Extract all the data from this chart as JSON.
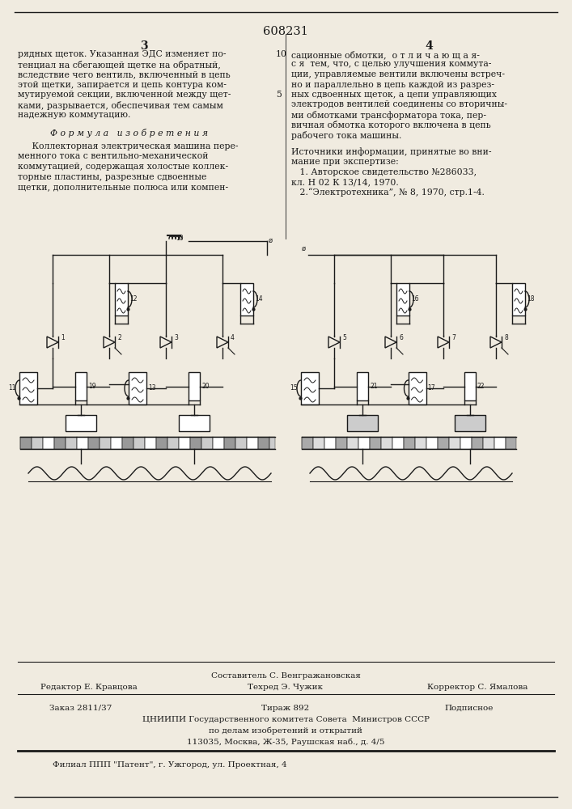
{
  "patent_number": "608231",
  "page_left": "3",
  "page_right": "4",
  "col_left_text": [
    "рядных щеток. Указанная ЭДС изменяет по-",
    "тенциал на сбегающей щетке на обратный,",
    "вследствие чего вентиль, включенный в цепь",
    "этой щетки, запирается и цепь контура ком-",
    "мутируемой секции, включенной между щет-",
    "ками, разрывается, обеспечивая тем самым",
    "надежную коммутацию."
  ],
  "formula_header": "Ф о р м у л а   и з о б р е т е н и я",
  "formula_text": [
    "     Коллекторная электрическая машина пере-",
    "менного тока с вентильно-механической",
    "коммутацией, содержащая холостые коллек-",
    "торные пластины, разрезные сдвоенные",
    "щетки, дополнительные полюса или компен-"
  ],
  "line_number_5": "5",
  "line_number_10": "10",
  "col_right_text": [
    "сационные обмотки,  о т л и ч а ю щ а я-",
    "с я  тем, что, с целью улучшения коммута-",
    "ции, управляемые вентили включены встреч-",
    "но и параллельно в цепь каждой из разрез-",
    "ных сдвоенных щеток, а цепи управляющих",
    "электродов вентилей соединены со вторичны-",
    "ми обмотками трансформатора тока, пер-",
    "вичная обмотка которого включена в цепь",
    "рабочего тока машины."
  ],
  "sources_header": "Источники информации, принятые во вни-",
  "sources_text": [
    "мание при экспертизе:",
    "   1. Авторское свидетельство №286033,",
    "кл. Н 02 К 13/14, 1970.",
    "   2.“Электротехника”, № 8, 1970, стр.1-4."
  ],
  "bottom_sestavitel": "Составитель С. Венгражановская",
  "bottom_redaktor": "Редактор Е. Кравцова",
  "bottom_tehred": "Техред Э. Чужик",
  "bottom_korrektor": "Корректор С. Ямалова",
  "bottom_zakaz": "Заказ 2811/37",
  "bottom_tirazh": "Тираж 892",
  "bottom_podpisnoe": "Подписное",
  "bottom_cniipI": "ЦНИИПИ Государственного комитета Совета  Министров СССР",
  "bottom_delam": "по делам изобретений и открытий",
  "bottom_address": "113035, Москва, Ж-35, Раушская наб., д. 4/5",
  "bottom_filial": "Филиал ППП \"Патент\", г. Ужгород, ул. Проектная, 4",
  "bg_color": "#f0ebe0",
  "text_color": "#1a1a1a"
}
